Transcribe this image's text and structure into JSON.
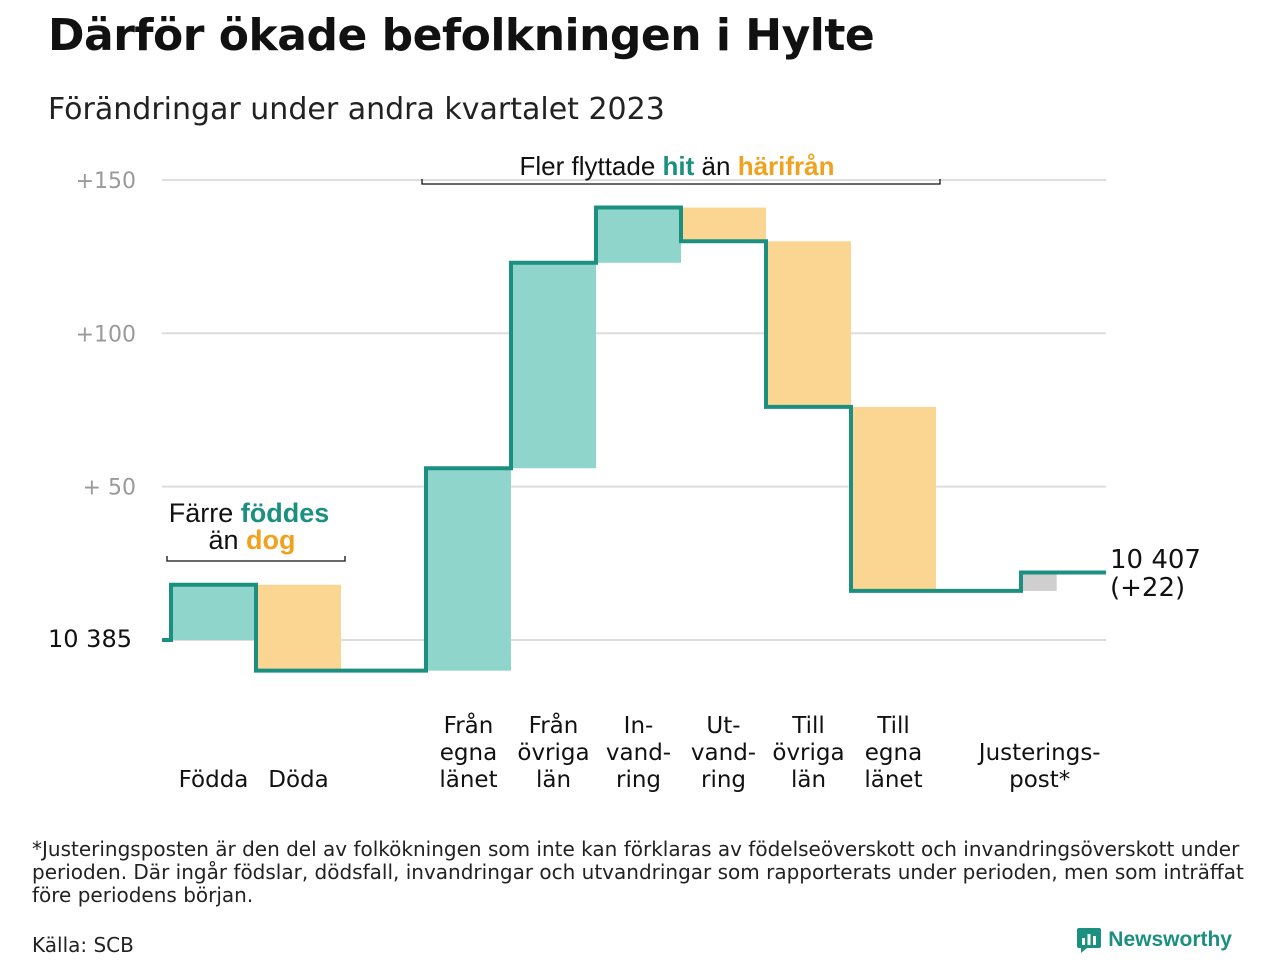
{
  "title": "Därför ökade befolkningen i Hylte",
  "subtitle": "Förändringar under andra kvartalet 2023",
  "colors": {
    "increase": "#8fd5cb",
    "decrease": "#fbd692",
    "adjustment": "#cfcfcf",
    "line": "#1b9081",
    "accent_teal": "#1b9081",
    "accent_orange": "#f0a21f"
  },
  "chart_data": {
    "type": "waterfall",
    "start_label": "10  385",
    "start_value": 10385,
    "y_ticks": [
      {
        "value": 150,
        "label": "+150"
      },
      {
        "value": 100,
        "label": "+100"
      },
      {
        "value": 50,
        "label": "+  50"
      }
    ],
    "ylim": [
      -12,
      155
    ],
    "steps": [
      {
        "id": "fodda",
        "label": "Födda",
        "delta": 18,
        "kind": "increase"
      },
      {
        "id": "doda",
        "label": "Döda",
        "delta": -28,
        "kind": "decrease"
      },
      {
        "id": "gap",
        "label": "",
        "delta": 0,
        "kind": "gap"
      },
      {
        "id": "fran-egna",
        "label": "Från\negna\nlänet",
        "delta": 66,
        "kind": "increase"
      },
      {
        "id": "fran-ovriga",
        "label": "Från\növriga\nlän",
        "delta": 67,
        "kind": "increase"
      },
      {
        "id": "invandring",
        "label": "In-\nvand-\nring",
        "delta": 18,
        "kind": "increase"
      },
      {
        "id": "utvandring",
        "label": "Ut-\nvand-\nring",
        "delta": -11,
        "kind": "decrease"
      },
      {
        "id": "till-ovriga",
        "label": "Till\növriga\nlän",
        "delta": -54,
        "kind": "decrease"
      },
      {
        "id": "till-egna",
        "label": "Till\negna\nlänet",
        "delta": -60,
        "kind": "decrease"
      },
      {
        "id": "gap2",
        "label": "",
        "delta": 0,
        "kind": "gap"
      },
      {
        "id": "justering",
        "label": "Justerings-\npost*",
        "delta": 6,
        "kind": "adjustment"
      }
    ],
    "end_label": "10 407",
    "end_change": "(+22)",
    "annotations": {
      "births": {
        "line1_prefix": "Färre ",
        "line1_highlight": "föddes",
        "line2_prefix": "än ",
        "line2_highlight": "dog"
      },
      "moves": {
        "prefix": "Fler flyttade ",
        "highlight1": "hit",
        "middle": " än ",
        "highlight2": "härifrån"
      }
    }
  },
  "footnote": "*Justeringsposten är den del av folkökningen som inte kan förklaras av födelseöverskott och invandringsöverskott under perioden. Där ingår födslar, dödsfall, invandringar och utvandringar som rapporterats under perioden, men som inträffat före periodens början.",
  "source": "Källa: SCB",
  "brand": {
    "name": "Newsworthy",
    "icon": "newsworthy-logo-icon"
  }
}
